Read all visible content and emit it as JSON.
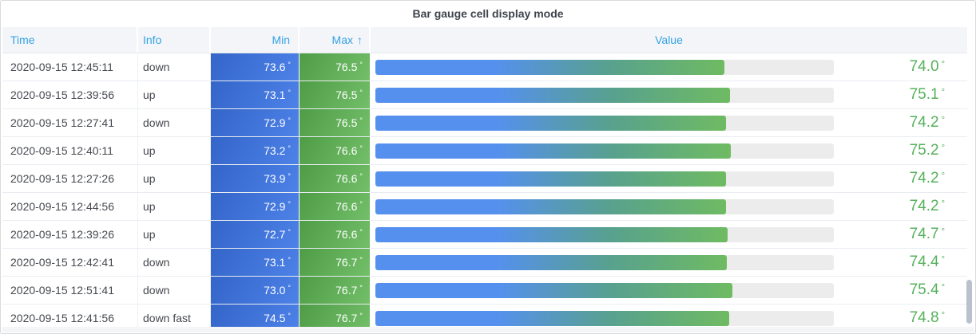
{
  "panel": {
    "title": "Bar gauge cell display mode",
    "unit": "°"
  },
  "table": {
    "columns": [
      {
        "key": "time",
        "label": "Time"
      },
      {
        "key": "info",
        "label": "Info"
      },
      {
        "key": "min",
        "label": "Min"
      },
      {
        "key": "max",
        "label": "Max",
        "sorted": "asc",
        "sort_icon": "↑"
      },
      {
        "key": "value",
        "label": "Value"
      }
    ],
    "rows": [
      {
        "time": "2020-09-15 12:45:11",
        "info": "down",
        "min": "73.6",
        "max": "76.5",
        "value": "74.0",
        "gauge_pct": 76.2
      },
      {
        "time": "2020-09-15 12:39:56",
        "info": "up",
        "min": "73.1",
        "max": "76.5",
        "value": "75.1",
        "gauge_pct": 77.4
      },
      {
        "time": "2020-09-15 12:27:41",
        "info": "down",
        "min": "72.9",
        "max": "76.5",
        "value": "74.2",
        "gauge_pct": 76.4
      },
      {
        "time": "2020-09-15 12:40:11",
        "info": "up",
        "min": "73.2",
        "max": "76.6",
        "value": "75.2",
        "gauge_pct": 77.6
      },
      {
        "time": "2020-09-15 12:27:26",
        "info": "up",
        "min": "73.9",
        "max": "76.6",
        "value": "74.2",
        "gauge_pct": 76.4
      },
      {
        "time": "2020-09-15 12:44:56",
        "info": "up",
        "min": "72.9",
        "max": "76.6",
        "value": "74.2",
        "gauge_pct": 76.4
      },
      {
        "time": "2020-09-15 12:39:26",
        "info": "up",
        "min": "72.7",
        "max": "76.6",
        "value": "74.7",
        "gauge_pct": 76.9
      },
      {
        "time": "2020-09-15 12:42:41",
        "info": "down",
        "min": "73.1",
        "max": "76.7",
        "value": "74.4",
        "gauge_pct": 76.6
      },
      {
        "time": "2020-09-15 12:51:41",
        "info": "down",
        "min": "73.0",
        "max": "76.7",
        "value": "75.4",
        "gauge_pct": 77.8
      },
      {
        "time": "2020-09-15 12:41:56",
        "info": "down fast",
        "min": "74.5",
        "max": "76.7",
        "value": "74.8",
        "gauge_pct": 77.1
      }
    ]
  },
  "chart_data": {
    "type": "table",
    "title": "Bar gauge cell display mode",
    "columns": [
      "Time",
      "Info",
      "Min",
      "Max",
      "Value"
    ],
    "unit": "°",
    "sort": {
      "column": "Max",
      "direction": "asc"
    },
    "rows": [
      [
        "2020-09-15 12:45:11",
        "down",
        73.6,
        76.5,
        74.0
      ],
      [
        "2020-09-15 12:39:56",
        "up",
        73.1,
        76.5,
        75.1
      ],
      [
        "2020-09-15 12:27:41",
        "down",
        72.9,
        76.5,
        74.2
      ],
      [
        "2020-09-15 12:40:11",
        "up",
        73.2,
        76.6,
        75.2
      ],
      [
        "2020-09-15 12:27:26",
        "up",
        73.9,
        76.6,
        74.2
      ],
      [
        "2020-09-15 12:44:56",
        "up",
        72.9,
        76.6,
        74.2
      ],
      [
        "2020-09-15 12:39:26",
        "up",
        72.7,
        76.6,
        74.7
      ],
      [
        "2020-09-15 12:42:41",
        "down",
        73.1,
        76.7,
        74.4
      ],
      [
        "2020-09-15 12:51:41",
        "down",
        73.0,
        76.7,
        75.4
      ],
      [
        "2020-09-15 12:41:56",
        "down fast",
        74.5,
        76.7,
        74.8
      ]
    ],
    "gauge_fill_pct": [
      76.2,
      77.4,
      76.4,
      77.6,
      76.4,
      76.4,
      76.9,
      76.6,
      77.8,
      77.1
    ],
    "value_display_style": "bar-gauge-gradient"
  },
  "colors": {
    "header_text": "#33a2e5",
    "title_text": "#3e434c",
    "row_text": "#45484e",
    "value_text": "#56b15c",
    "min_grad_a": "#3465c9",
    "min_grad_b": "#4d82e8",
    "max_grad_a": "#4f9c47",
    "max_grad_b": "#73bf69",
    "bar_blue": "#5690ef",
    "bar_teal": "#58a18e",
    "bar_green": "#6fbb62",
    "track": "#ececec",
    "panel_border": "#d8dadd",
    "header_bg": "#f3f5f8",
    "thumb": "#b9c1cc"
  }
}
